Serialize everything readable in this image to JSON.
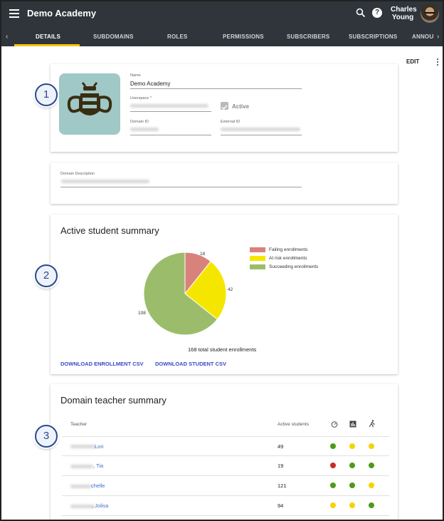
{
  "app": {
    "title": "Demo Academy",
    "user_name": "Charles Young"
  },
  "tabs": [
    {
      "label": "DETAILS",
      "active": true
    },
    {
      "label": "SUBDOMAINS"
    },
    {
      "label": "ROLES"
    },
    {
      "label": "PERMISSIONS"
    },
    {
      "label": "SUBSCRIBERS"
    },
    {
      "label": "SUBSCRIPTIONS"
    },
    {
      "label": "ANNOUN"
    }
  ],
  "toolbar": {
    "edit_label": "EDIT"
  },
  "details": {
    "name_label": "Name",
    "name_value": "Demo Academy",
    "userspace_label": "Userspace *",
    "active_label": "Active",
    "domain_id_label": "Domain ID",
    "external_id_label": "External ID"
  },
  "description": {
    "label": "Domain Description"
  },
  "badges": [
    "1",
    "2",
    "3"
  ],
  "student_summary": {
    "title": "Active student summary",
    "total_text": "168 total student enrollments",
    "download_enrollment": "DOWNLOAD ENROLLMENT CSV",
    "download_student": "DOWNLOAD STUDENT CSV"
  },
  "chart_data": {
    "type": "pie",
    "slices": [
      {
        "label": "Failing enrollments",
        "value": 18,
        "color": "#d9827c"
      },
      {
        "label": "At risk enrollments",
        "value": 42,
        "color": "#f5e600"
      },
      {
        "label": "Succeeding enrollments",
        "value": 108,
        "color": "#9bbd6b"
      }
    ],
    "legend_position": "right"
  },
  "teacher_summary": {
    "title": "Domain teacher summary",
    "columns": {
      "teacher": "Teacher",
      "active_students": "Active students"
    },
    "icons": [
      "timer-icon",
      "bar-chart-icon",
      "runner-icon"
    ],
    "rows": [
      {
        "name": "Lori",
        "students": "49",
        "status": [
          "#4f9a1a",
          "#f5d400",
          "#f5d400"
        ]
      },
      {
        "name": ", Tia",
        "students": "19",
        "status": [
          "#c62f1f",
          "#4f9a1a",
          "#4f9a1a"
        ]
      },
      {
        "name": "chelle",
        "students": "121",
        "status": [
          "#4f9a1a",
          "#4f9a1a",
          "#f5d400"
        ]
      },
      {
        "name": ", Jolisa",
        "students": "94",
        "status": [
          "#f5d400",
          "#f5d400",
          "#4f9a1a"
        ]
      }
    ]
  }
}
